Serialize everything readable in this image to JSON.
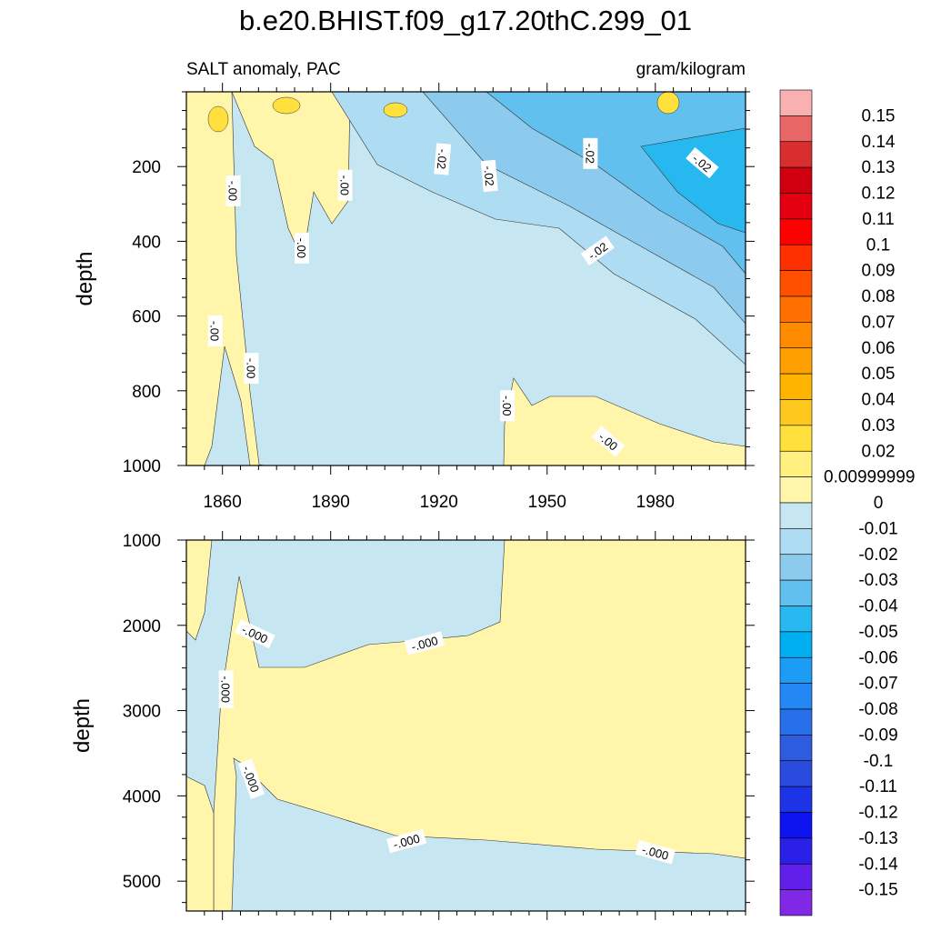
{
  "chart_data": {
    "type": "heatmap",
    "title": "b.e20.BHIST.f09_g17.20thC.299_01",
    "variable": "SALT anomaly, PAC",
    "units": "gram/kilogram",
    "panels": [
      {
        "name": "upper",
        "ylabel": "depth",
        "xlim": [
          1850,
          2005
        ],
        "ylim": [
          0,
          1000
        ],
        "y_reversed": true,
        "x_ticks": [
          1860,
          1890,
          1920,
          1950,
          1980
        ],
        "y_ticks": [
          200,
          400,
          600,
          800,
          1000
        ],
        "x_tick_labels_shown": true,
        "contour_labels": [
          {
            "text": "-.00",
            "x": 1863,
            "y": 265,
            "angle": 90
          },
          {
            "text": "-.00",
            "x": 1894,
            "y": 250,
            "angle": 90
          },
          {
            "text": "-.00",
            "x": 1882,
            "y": 418,
            "angle": 90
          },
          {
            "text": "-.00",
            "x": 1858,
            "y": 640,
            "angle": 90
          },
          {
            "text": "-.00",
            "x": 1868,
            "y": 740,
            "angle": 90
          },
          {
            "text": "-.02",
            "x": 1921,
            "y": 180,
            "angle": 95
          },
          {
            "text": "-.02",
            "x": 1934,
            "y": 225,
            "angle": 85
          },
          {
            "text": "-.02",
            "x": 1962,
            "y": 165,
            "angle": 90
          },
          {
            "text": "-.02",
            "x": 1993,
            "y": 190,
            "angle": 40
          },
          {
            "text": "-.02",
            "x": 1964,
            "y": 425,
            "angle": -35
          },
          {
            "text": "-.00",
            "x": 1939,
            "y": 840,
            "angle": 90
          },
          {
            "text": "-.00",
            "x": 1967,
            "y": 935,
            "angle": 40
          }
        ]
      },
      {
        "name": "lower",
        "ylabel": "depth",
        "xlim": [
          1850,
          2005
        ],
        "ylim": [
          1000,
          5350
        ],
        "y_reversed": true,
        "x_ticks": [
          1860,
          1890,
          1920,
          1950,
          1980
        ],
        "y_ticks": [
          1000,
          2000,
          3000,
          4000,
          5000
        ],
        "x_tick_labels_shown": false,
        "contour_labels": [
          {
            "text": "-.000",
            "x": 1869,
            "y": 2100,
            "angle": 25
          },
          {
            "text": "-.000",
            "x": 1861,
            "y": 2750,
            "angle": 90
          },
          {
            "text": "-.000",
            "x": 1868,
            "y": 3800,
            "angle": 70
          },
          {
            "text": "-.000",
            "x": 1916,
            "y": 2210,
            "angle": -15
          },
          {
            "text": "-.000",
            "x": 1911,
            "y": 4530,
            "angle": -15
          },
          {
            "text": "-.000",
            "x": 1980,
            "y": 4660,
            "angle": 15
          }
        ]
      }
    ],
    "colorbar": {
      "levels": [
        "0.15",
        "0.14",
        "0.13",
        "0.12",
        "0.11",
        "0.1",
        "0.09",
        "0.08",
        "0.07",
        "0.06",
        "0.05",
        "0.04",
        "0.03",
        "0.02",
        "0.00999999",
        "0",
        "-0.01",
        "-0.02",
        "-0.03",
        "-0.04",
        "-0.05",
        "-0.06",
        "-0.07",
        "-0.08",
        "-0.09",
        "-0.1",
        "-0.11",
        "-0.12",
        "-0.13",
        "-0.14",
        "-0.15"
      ],
      "colors": [
        "#f8b0b0",
        "#e86666",
        "#d82e2e",
        "#d00010",
        "#e40010",
        "#ff0000",
        "#ff3000",
        "#ff5000",
        "#ff7000",
        "#ff8c00",
        "#ffa000",
        "#ffb400",
        "#ffc81e",
        "#ffe03c",
        "#fff080",
        "#fff6ac",
        "#c6e6f2",
        "#aedcf2",
        "#8ccbee",
        "#62c0ee",
        "#28b8f0",
        "#00aef2",
        "#1c9cf4",
        "#2488f4",
        "#2870ea",
        "#2e5cde",
        "#2a4cde",
        "#1c34e6",
        "#0e14f0",
        "#2a20e8",
        "#6020ea",
        "#8028e6"
      ]
    },
    "palette": {
      "yellow": "#fff6ac",
      "light_blue": "#c6e6f2",
      "blue1": "#aedcf2",
      "blue2": "#8ccbee",
      "blue3": "#62c0ee",
      "blue4": "#28b8f0",
      "gold": "#ffe03c"
    }
  }
}
